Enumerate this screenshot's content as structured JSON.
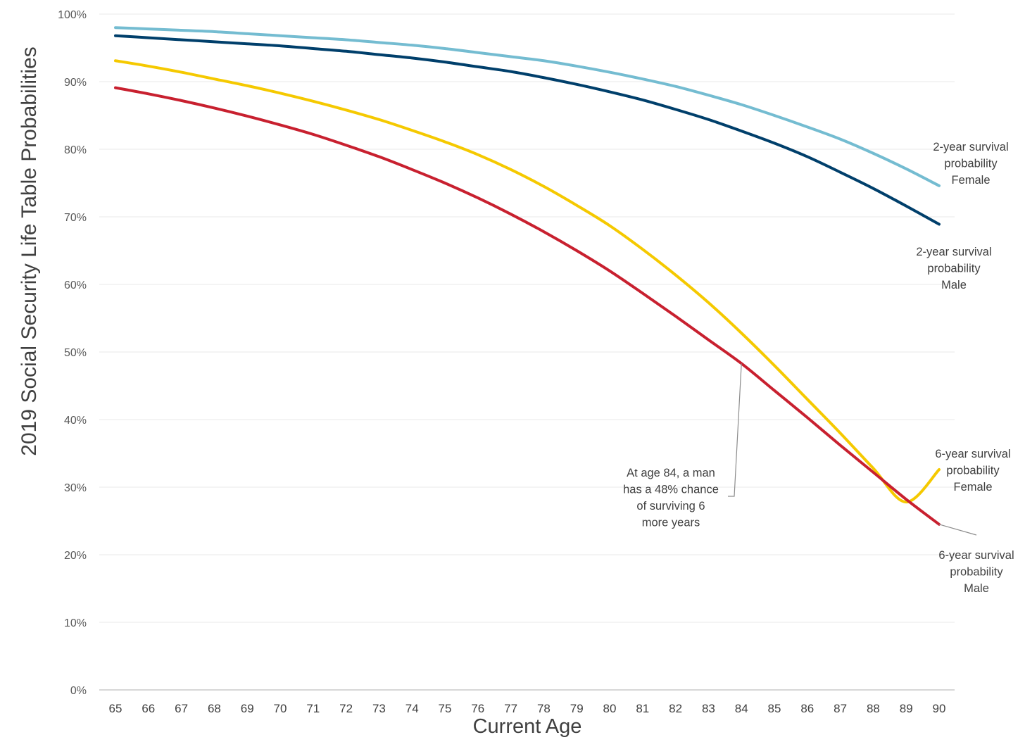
{
  "chart_data": {
    "type": "line",
    "xlabel": "Current Age",
    "ylabel": "2019 Social Security Life Table Probabilities",
    "x": [
      65,
      66,
      67,
      68,
      69,
      70,
      71,
      72,
      73,
      74,
      75,
      76,
      77,
      78,
      79,
      80,
      81,
      82,
      83,
      84,
      85,
      86,
      87,
      88,
      89,
      90
    ],
    "xlim": [
      65,
      90
    ],
    "ylim": [
      0,
      100
    ],
    "y_ticks": [
      "0%",
      "10%",
      "20%",
      "30%",
      "40%",
      "50%",
      "60%",
      "70%",
      "80%",
      "90%",
      "100%"
    ],
    "grid": "horizontal",
    "series": [
      {
        "name": "2-year survival probability Female",
        "color": "#74BCD1",
        "values": [
          98.0,
          97.8,
          97.6,
          97.4,
          97.1,
          96.8,
          96.5,
          96.2,
          95.8,
          95.4,
          94.9,
          94.3,
          93.7,
          93.1,
          92.3,
          91.4,
          90.4,
          89.3,
          88.0,
          86.6,
          85.0,
          83.3,
          81.5,
          79.4,
          77.1,
          74.6
        ]
      },
      {
        "name": "2-year survival probability Male",
        "color": "#003F6B",
        "values": [
          96.8,
          96.5,
          96.2,
          95.9,
          95.6,
          95.3,
          94.9,
          94.5,
          94.0,
          93.5,
          92.9,
          92.2,
          91.5,
          90.6,
          89.6,
          88.5,
          87.3,
          85.9,
          84.4,
          82.7,
          80.9,
          78.9,
          76.6,
          74.2,
          71.6,
          68.9
        ]
      },
      {
        "name": "6-year survival probability Female",
        "color": "#F5C900",
        "values": [
          93.1,
          92.3,
          91.4,
          90.4,
          89.4,
          88.3,
          87.1,
          85.8,
          84.4,
          82.8,
          81.1,
          79.2,
          77.0,
          74.5,
          71.7,
          68.7,
          65.2,
          61.4,
          57.3,
          52.8,
          48.0,
          43.0,
          38.0,
          32.8,
          27.8,
          32.6
        ]
      },
      {
        "name": "6-year survival probability Male",
        "color": "#C8202F",
        "values": [
          89.1,
          88.2,
          87.2,
          86.1,
          84.9,
          83.6,
          82.2,
          80.6,
          78.9,
          77.0,
          75.0,
          72.8,
          70.4,
          67.8,
          65.0,
          62.0,
          58.7,
          55.3,
          51.8,
          48.3,
          44.3,
          40.3,
          36.2,
          32.2,
          28.2,
          24.5
        ]
      }
    ],
    "annotations": [
      {
        "text": [
          "2-year survival",
          "probability",
          "Female"
        ]
      },
      {
        "text": [
          "2-year survival",
          "probability",
          "Male"
        ]
      },
      {
        "text": [
          "6-year survival",
          "probability",
          "Female"
        ]
      },
      {
        "text": [
          "6-year survival",
          "probability",
          "Male"
        ]
      },
      {
        "text": [
          "At age 84, a man",
          "has a 48% chance",
          "of surviving 6",
          "more years"
        ],
        "x": 84,
        "y": 48.3
      }
    ]
  }
}
